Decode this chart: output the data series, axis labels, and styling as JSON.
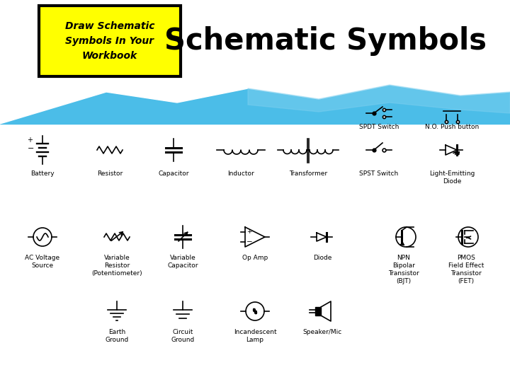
{
  "title": "Schematic Symbols",
  "box_title": "Draw Schematic\nSymbols In Your\nWorkbook",
  "bg_blue": "#4BBDE8",
  "bg_white": "#FFFFFF",
  "box_fill": "#FFFF00",
  "box_edge": "#000000",
  "symbol_color": "#000000",
  "label_color": "#000000",
  "labels_row1": [
    "Battery",
    "Resistor",
    "Capacitor",
    "Inductor",
    "Transformer",
    "SPST Switch",
    "Light-Emitting\nDiode"
  ],
  "labels_row1b": [
    "SPDT Switch",
    "N.O. Push button"
  ],
  "labels_row2": [
    "AC Voltage\nSource",
    "Variable\nResistor\n(Potentiometer)",
    "Variable\nCapacitor",
    "Op Amp",
    "Diode",
    "NPN\nBipolar\nTransistor\n(BJT)",
    "PMOS\nField Effect\nTransistor\n(FET)"
  ],
  "labels_row3": [
    "Earth\nGround",
    "Circuit\nGround",
    "Incandescent\nLamp",
    "Speaker/Mic"
  ]
}
